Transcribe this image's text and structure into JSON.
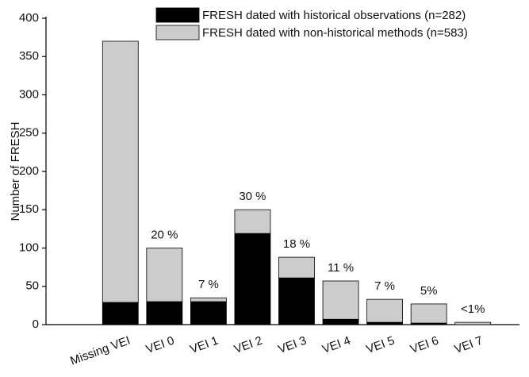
{
  "chart_data": {
    "type": "stacked_bar",
    "y_label": "Number of FRESH",
    "categories": [
      "Missing VEI",
      "VEI 0",
      "VEI 1",
      "VEI 2",
      "VEI 3",
      "VEI 4",
      "VEI 5",
      "VEI 6",
      "VEI 7"
    ],
    "series": [
      {
        "name": "FRESH dated with historical observations (n=282)",
        "color": "#000000",
        "values": [
          29,
          30,
          30,
          119,
          61,
          7,
          3,
          2,
          0
        ]
      },
      {
        "name": "FRESH dated with non-historical methods (n=583)",
        "color": "#cccccc",
        "values": [
          341,
          70,
          5,
          31,
          27,
          50,
          30,
          25,
          3
        ]
      }
    ],
    "annotations": [
      null,
      "20 %",
      "7 %",
      "30 %",
      "18 %",
      "11 %",
      "7 %",
      "5%",
      "<1%"
    ],
    "ylim": [
      0,
      400
    ],
    "yticks": [
      0,
      50,
      100,
      150,
      200,
      250,
      300,
      350,
      400
    ],
    "grid": false,
    "legend": "top-right"
  }
}
